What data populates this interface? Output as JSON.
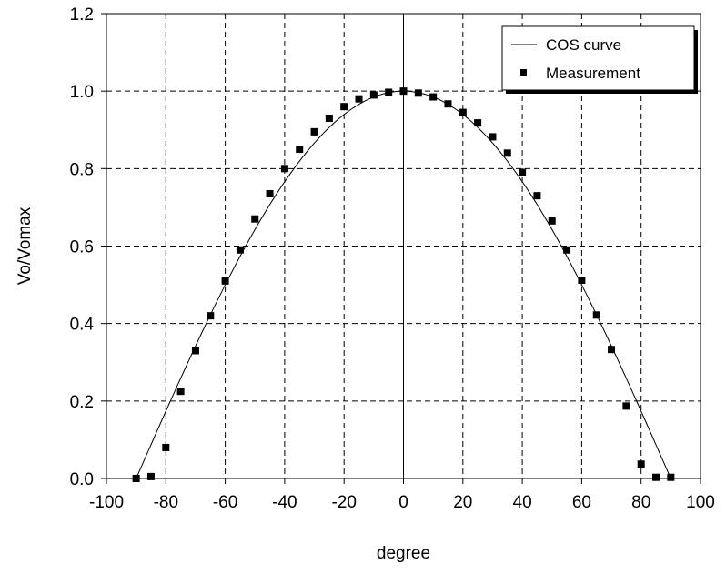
{
  "chart_data": {
    "type": "scatter",
    "title": "",
    "xlabel": "degree",
    "ylabel": "Vo/Vomax",
    "xlim": [
      -100,
      100
    ],
    "ylim": [
      0.0,
      1.2
    ],
    "x_ticks": [
      -100,
      -80,
      -60,
      -40,
      -20,
      0,
      20,
      40,
      60,
      80,
      100
    ],
    "x_tick_labels": [
      "-100",
      "-80",
      "-60",
      "-40",
      "-20",
      "0",
      "20",
      "40",
      "60",
      "80",
      "100"
    ],
    "y_ticks": [
      0.0,
      0.2,
      0.4,
      0.6,
      0.8,
      1.0,
      1.2
    ],
    "y_tick_labels": [
      "0.0",
      "0.2",
      "0.4",
      "0.6",
      "0.8",
      "1.0",
      "1.2"
    ],
    "grid": true,
    "legend_position": "top-right",
    "series": [
      {
        "name": "COS curve",
        "kind": "line",
        "function": "cos",
        "x_range": [
          -90,
          90
        ]
      },
      {
        "name": "Measurement",
        "kind": "scatter",
        "marker": "square",
        "points": [
          [
            -90,
            0.0
          ],
          [
            -85,
            0.005
          ],
          [
            -80,
            0.08
          ],
          [
            -75,
            0.225
          ],
          [
            -70,
            0.33
          ],
          [
            -65,
            0.42
          ],
          [
            -60,
            0.51
          ],
          [
            -55,
            0.59
          ],
          [
            -50,
            0.67
          ],
          [
            -45,
            0.735
          ],
          [
            -40,
            0.8
          ],
          [
            -35,
            0.85
          ],
          [
            -30,
            0.895
          ],
          [
            -25,
            0.93
          ],
          [
            -20,
            0.96
          ],
          [
            -15,
            0.98
          ],
          [
            -10,
            0.99
          ],
          [
            -5,
            0.997
          ],
          [
            0,
            1.0
          ],
          [
            5,
            0.995
          ],
          [
            10,
            0.985
          ],
          [
            15,
            0.967
          ],
          [
            20,
            0.945
          ],
          [
            25,
            0.918
          ],
          [
            30,
            0.882
          ],
          [
            35,
            0.84
          ],
          [
            40,
            0.79
          ],
          [
            45,
            0.73
          ],
          [
            50,
            0.665
          ],
          [
            55,
            0.59
          ],
          [
            60,
            0.512
          ],
          [
            65,
            0.422
          ],
          [
            70,
            0.333
          ],
          [
            75,
            0.187
          ],
          [
            80,
            0.037
          ],
          [
            85,
            0.003
          ],
          [
            90,
            0.003
          ]
        ]
      }
    ]
  }
}
